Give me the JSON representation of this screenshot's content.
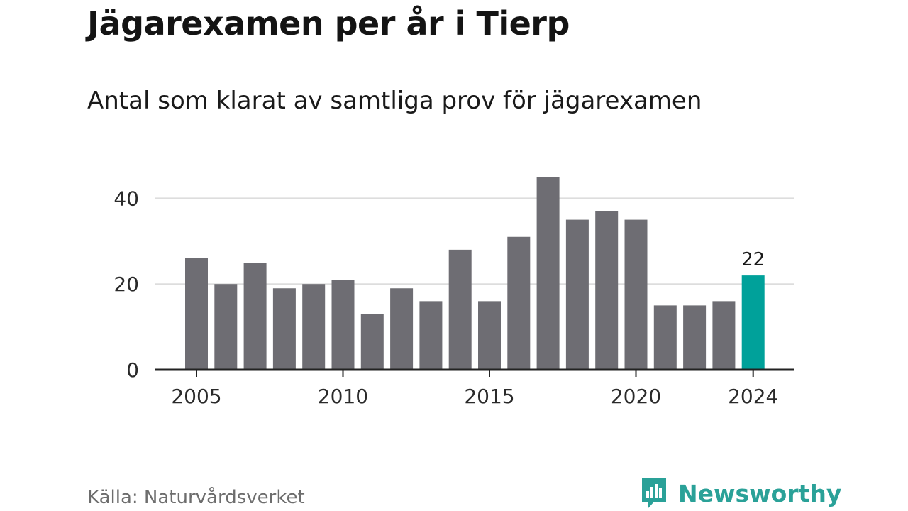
{
  "title": "Jägarexamen per år i Tierp",
  "subtitle": "Antal som klarat av samtliga prov för jägarexamen",
  "source": "Källa: Naturvårdsverket",
  "brand": {
    "name": "Newsworthy",
    "icon": "newsworthy-logo-icon"
  },
  "colors": {
    "bar": "#6e6d73",
    "highlight": "#00a19a",
    "grid": "#dddddd",
    "axis": "#222222",
    "brand": "#2aa198"
  },
  "chart_data": {
    "type": "bar",
    "x": [
      2004,
      2005,
      2006,
      2007,
      2008,
      2009,
      2010,
      2011,
      2012,
      2013,
      2014,
      2015,
      2016,
      2017,
      2018,
      2019,
      2020,
      2021,
      2022,
      2023,
      2024
    ],
    "values": [
      null,
      26,
      20,
      25,
      19,
      20,
      21,
      13,
      19,
      16,
      28,
      16,
      31,
      45,
      35,
      37,
      35,
      15,
      15,
      16,
      22
    ],
    "highlight_x": 2024,
    "data_labels": [
      {
        "x": 2024,
        "text": "22"
      }
    ],
    "x_ticks": [
      "2005",
      "2010",
      "2015",
      "2020",
      "2024"
    ],
    "y_ticks": [
      "0",
      "20",
      "40"
    ],
    "ylim": [
      0,
      45
    ],
    "xlabel": "",
    "ylabel": "",
    "grid": true
  }
}
